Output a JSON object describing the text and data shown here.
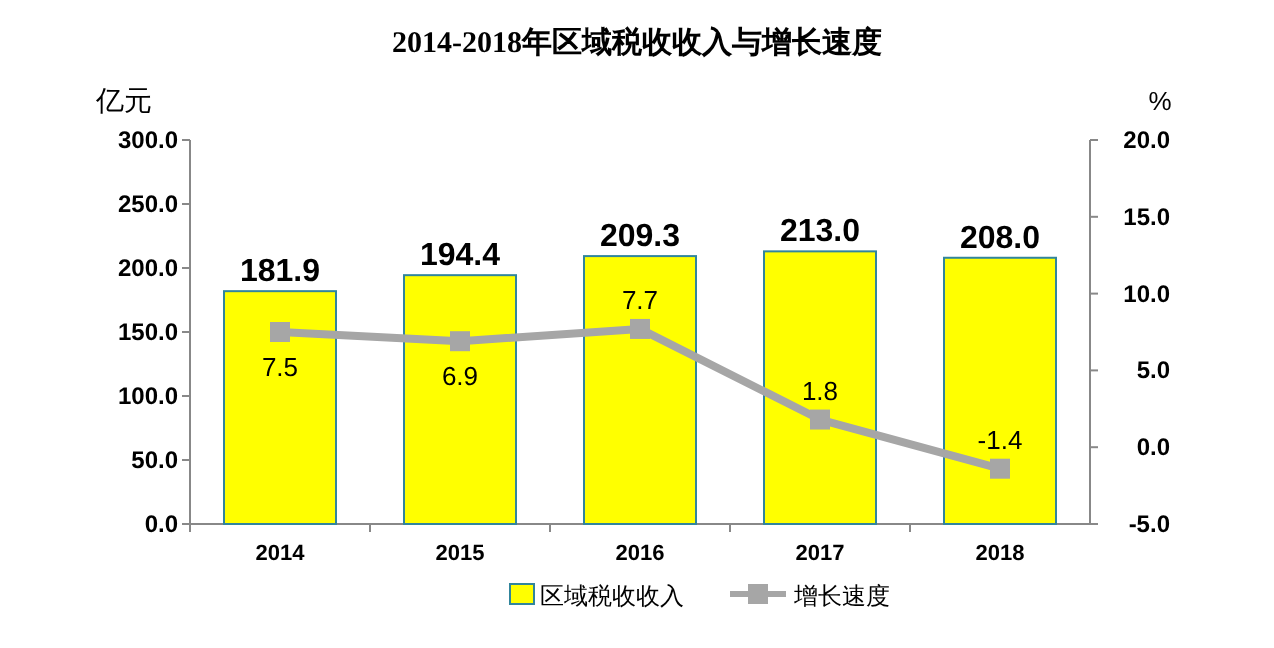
{
  "chart_data": {
    "type": "bar",
    "title": "2014-2018年区域税收收入与增长速度",
    "ylabel": "亿元",
    "y2label": "%",
    "categories": [
      "2014",
      "2015",
      "2016",
      "2017",
      "2018"
    ],
    "series": [
      {
        "name": "区域税收收入",
        "color": "#ffff00",
        "values": [
          181.9,
          194.4,
          209.3,
          213.0,
          208.0
        ],
        "value_labels": [
          "181.9",
          "194.4",
          "209.3",
          "213.0",
          "208.0"
        ]
      },
      {
        "name": "增长速度",
        "type": "line",
        "axis": "y2",
        "color": "#a6a6a6",
        "values": [
          7.5,
          6.9,
          7.7,
          1.8,
          -1.4
        ]
      }
    ],
    "ylim": [
      0,
      300
    ],
    "yticks": [
      {
        "value": 0,
        "label": "0.0"
      },
      {
        "value": 50,
        "label": "50.0"
      },
      {
        "value": 100,
        "label": "100.0"
      },
      {
        "value": 150,
        "label": "150.0"
      },
      {
        "value": 200,
        "label": "200.0"
      },
      {
        "value": 250,
        "label": "250.0"
      },
      {
        "value": 300,
        "label": "300.0"
      }
    ],
    "y2lim": [
      -5,
      20
    ],
    "y2ticks": [
      {
        "value": -5,
        "label": "-5.0"
      },
      {
        "value": 0,
        "label": "0.0"
      },
      {
        "value": 5,
        "label": "5.0"
      },
      {
        "value": 10,
        "label": "10.0"
      },
      {
        "value": 15,
        "label": "15.0"
      },
      {
        "value": 20,
        "label": "20.0"
      }
    ],
    "data_labels": true,
    "legend": "bottom",
    "grid": false,
    "marker": "square",
    "line_style": "solid"
  }
}
